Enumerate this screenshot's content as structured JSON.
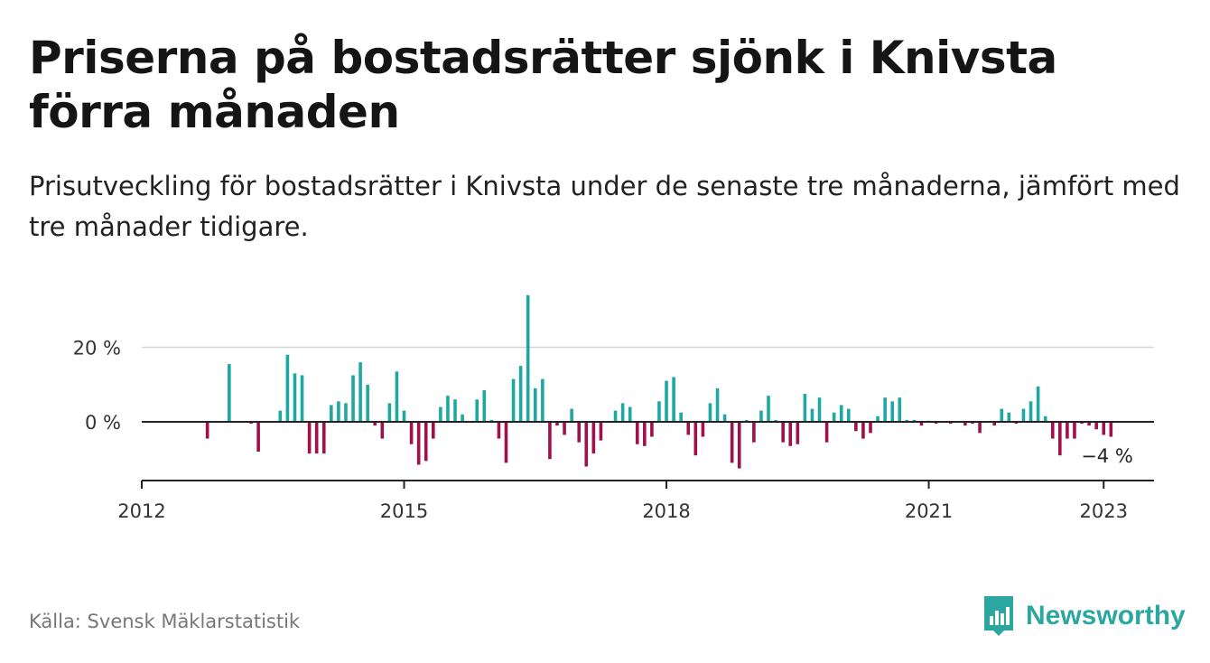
{
  "title": "Priserna på bostadsrätter sjönk i Knivsta förra månaden",
  "subtitle": "Prisutveckling för bostadsrätter i Knivsta under de senaste tre månaderna, jämfört med tre månader tidigare.",
  "source": "Källa: Svensk Mäklarstatistik",
  "brand": "Newsworthy",
  "colors": {
    "positive": "#1fa8a1",
    "negative": "#a0104a",
    "brand": "#2ca7a0",
    "grid": "#d6d6d6",
    "axis": "#222222"
  },
  "chart_data": {
    "type": "bar",
    "x_start": "2012-01",
    "x_end": "2023-03",
    "ylim": [
      -13,
      35
    ],
    "yticks": [
      {
        "value": 0,
        "label": "0 %"
      },
      {
        "value": 20,
        "label": "20 %"
      }
    ],
    "xticks": [
      {
        "date": "2012-01",
        "label": "2012"
      },
      {
        "date": "2015-01",
        "label": "2015"
      },
      {
        "date": "2018-01",
        "label": "2018"
      },
      {
        "date": "2021-01",
        "label": "2021"
      },
      {
        "date": "2023-01",
        "label": "2023"
      }
    ],
    "last_value_label": "−4 %",
    "series": [
      {
        "unit": "%",
        "points": [
          [
            "2012-10",
            -4.5
          ],
          [
            "2013-01",
            15.5
          ],
          [
            "2013-04",
            -0.5
          ],
          [
            "2013-05",
            -8.0
          ],
          [
            "2013-08",
            3.0
          ],
          [
            "2013-09",
            18.0
          ],
          [
            "2013-10",
            13.0
          ],
          [
            "2013-11",
            12.5
          ],
          [
            "2013-12",
            -8.5
          ],
          [
            "2014-01",
            -8.5
          ],
          [
            "2014-02",
            -8.5
          ],
          [
            "2014-03",
            4.5
          ],
          [
            "2014-04",
            5.5
          ],
          [
            "2014-05",
            5.0
          ],
          [
            "2014-06",
            12.5
          ],
          [
            "2014-07",
            16.0
          ],
          [
            "2014-08",
            10.0
          ],
          [
            "2014-09",
            -1.0
          ],
          [
            "2014-10",
            -4.5
          ],
          [
            "2014-11",
            5.0
          ],
          [
            "2014-12",
            13.5
          ],
          [
            "2015-01",
            3.0
          ],
          [
            "2015-02",
            -6.0
          ],
          [
            "2015-03",
            -11.5
          ],
          [
            "2015-04",
            -10.5
          ],
          [
            "2015-05",
            -4.5
          ],
          [
            "2015-06",
            4.0
          ],
          [
            "2015-07",
            7.0
          ],
          [
            "2015-08",
            6.0
          ],
          [
            "2015-09",
            2.0
          ],
          [
            "2015-11",
            6.0
          ],
          [
            "2015-12",
            8.5
          ],
          [
            "2016-01",
            0.5
          ],
          [
            "2016-02",
            -4.5
          ],
          [
            "2016-03",
            -11.0
          ],
          [
            "2016-04",
            11.5
          ],
          [
            "2016-05",
            15.0
          ],
          [
            "2016-06",
            34.0
          ],
          [
            "2016-07",
            9.0
          ],
          [
            "2016-08",
            11.5
          ],
          [
            "2016-09",
            -10.0
          ],
          [
            "2016-10",
            -1.0
          ],
          [
            "2016-11",
            -3.5
          ],
          [
            "2016-12",
            3.5
          ],
          [
            "2017-01",
            -5.5
          ],
          [
            "2017-02",
            -12.0
          ],
          [
            "2017-03",
            -8.5
          ],
          [
            "2017-04",
            -5.0
          ],
          [
            "2017-06",
            3.0
          ],
          [
            "2017-07",
            5.0
          ],
          [
            "2017-08",
            4.0
          ],
          [
            "2017-09",
            -6.0
          ],
          [
            "2017-10",
            -6.5
          ],
          [
            "2017-11",
            -4.0
          ],
          [
            "2017-12",
            5.5
          ],
          [
            "2018-01",
            11.0
          ],
          [
            "2018-02",
            12.0
          ],
          [
            "2018-03",
            2.5
          ],
          [
            "2018-04",
            -3.5
          ],
          [
            "2018-05",
            -9.0
          ],
          [
            "2018-06",
            -4.0
          ],
          [
            "2018-07",
            5.0
          ],
          [
            "2018-08",
            9.0
          ],
          [
            "2018-09",
            2.0
          ],
          [
            "2018-10",
            -11.0
          ],
          [
            "2018-11",
            -12.5
          ],
          [
            "2018-12",
            0.5
          ],
          [
            "2019-01",
            -5.5
          ],
          [
            "2019-02",
            3.0
          ],
          [
            "2019-03",
            7.0
          ],
          [
            "2019-04",
            0.5
          ],
          [
            "2019-05",
            -5.5
          ],
          [
            "2019-06",
            -6.5
          ],
          [
            "2019-07",
            -6.0
          ],
          [
            "2019-08",
            7.5
          ],
          [
            "2019-09",
            3.5
          ],
          [
            "2019-10",
            6.5
          ],
          [
            "2019-11",
            -5.5
          ],
          [
            "2019-12",
            2.5
          ],
          [
            "2020-01",
            4.5
          ],
          [
            "2020-02",
            3.5
          ],
          [
            "2020-03",
            -2.5
          ],
          [
            "2020-04",
            -4.5
          ],
          [
            "2020-05",
            -3.0
          ],
          [
            "2020-06",
            1.5
          ],
          [
            "2020-07",
            6.5
          ],
          [
            "2020-08",
            5.5
          ],
          [
            "2020-09",
            6.5
          ],
          [
            "2020-10",
            0.5
          ],
          [
            "2020-11",
            0.5
          ],
          [
            "2020-12",
            -1.0
          ],
          [
            "2021-01",
            0.3
          ],
          [
            "2021-02",
            -0.5
          ],
          [
            "2021-04",
            -0.5
          ],
          [
            "2021-06",
            -1.0
          ],
          [
            "2021-07",
            -0.5
          ],
          [
            "2021-08",
            -3.0
          ],
          [
            "2021-10",
            -1.0
          ],
          [
            "2021-11",
            3.5
          ],
          [
            "2021-12",
            2.5
          ],
          [
            "2022-01",
            -0.5
          ],
          [
            "2022-02",
            3.5
          ],
          [
            "2022-03",
            5.5
          ],
          [
            "2022-04",
            9.5
          ],
          [
            "2022-05",
            1.5
          ],
          [
            "2022-06",
            -4.5
          ],
          [
            "2022-07",
            -9.0
          ],
          [
            "2022-08",
            -4.5
          ],
          [
            "2022-09",
            -4.5
          ],
          [
            "2022-10",
            -0.5
          ],
          [
            "2022-11",
            -1.0
          ],
          [
            "2022-12",
            -2.0
          ],
          [
            "2023-01",
            -3.5
          ],
          [
            "2023-02",
            -4.0
          ]
        ]
      }
    ]
  }
}
